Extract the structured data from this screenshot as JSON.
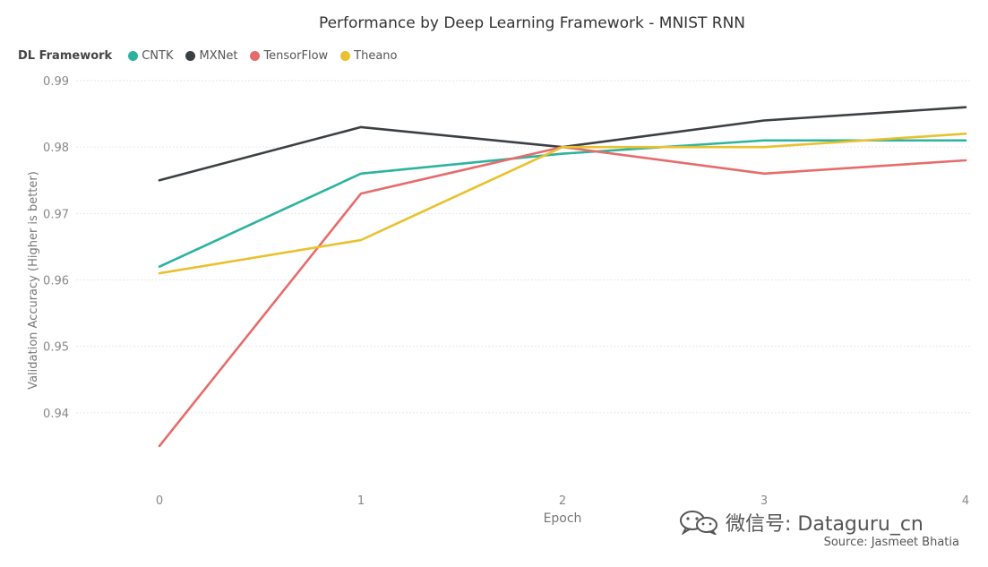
{
  "chart_data": {
    "type": "line",
    "title": "Performance by Deep Learning Framework - MNIST RNN",
    "legend_title": "DL Framework",
    "legend_position": "top-left",
    "xlabel": "Epoch",
    "ylabel": "Validation Accuracy (Higher is better)",
    "x": [
      0,
      1,
      2,
      3,
      4
    ],
    "x_tick_labels": [
      "0",
      "1",
      "2",
      "3",
      "4"
    ],
    "ylim": [
      0.93,
      0.99
    ],
    "y_tick_labels": [
      "0.94",
      "0.95",
      "0.96",
      "0.97",
      "0.98",
      "0.99"
    ],
    "grid": true,
    "series": [
      {
        "name": "CNTK",
        "color": "#2bb3a0",
        "values": [
          0.962,
          0.976,
          0.979,
          0.981,
          0.981
        ]
      },
      {
        "name": "MXNet",
        "color": "#3b4043",
        "values": [
          0.975,
          0.983,
          0.98,
          0.984,
          0.986
        ]
      },
      {
        "name": "TensorFlow",
        "color": "#e66c6c",
        "values": [
          0.935,
          0.973,
          0.98,
          0.976,
          0.978
        ]
      },
      {
        "name": "Theano",
        "color": "#e9c12e",
        "values": [
          0.961,
          0.966,
          0.98,
          0.98,
          0.982
        ]
      }
    ],
    "source": "Source: Jasmeet Bhatia"
  },
  "watermark": {
    "text": "微信号: Dataguru_cn",
    "icon": "wechat-icon"
  }
}
